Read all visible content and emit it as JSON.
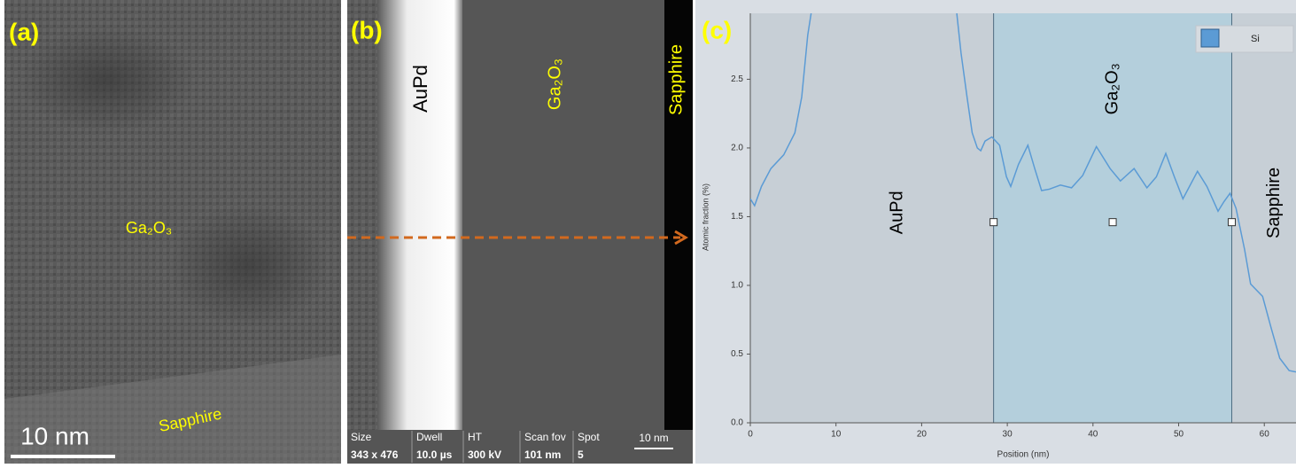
{
  "panel_a": {
    "label": "(a)",
    "layer": "Ga₂O₃",
    "substrate": "Sapphire",
    "scale_bar": "10 nm"
  },
  "panel_b": {
    "label": "(b)",
    "regions": [
      "AuPd",
      "Ga₂O₃",
      "Sapphire"
    ],
    "scale_bar": "10 nm",
    "info": [
      [
        "Size",
        "343 x 476"
      ],
      [
        "Dwell",
        "10.0 µs"
      ],
      [
        "HT",
        "300 kV"
      ],
      [
        "Scan fov",
        "101 nm"
      ],
      [
        "Spot",
        "5"
      ]
    ]
  },
  "chart_data": {
    "type": "line",
    "panel_label": "(c)",
    "xlabel": "Position (nm)",
    "ylabel": "Atomic fraction (%)",
    "xlim": [
      0,
      63.7
    ],
    "ylim": [
      0,
      2.98
    ],
    "xticks": [
      0,
      10,
      20,
      30,
      40,
      50,
      60
    ],
    "yticks": [
      {
        "value": 0,
        "label": "0.0"
      },
      0.5,
      {
        "value": 1,
        "label": "1.0"
      },
      1.5,
      {
        "value": 2,
        "label": "2.0"
      },
      2.5
    ],
    "legend": "top-right",
    "x": [
      0,
      0.5,
      1.3,
      2.4,
      3.9,
      5.2,
      6,
      6.7,
      7.1,
      15,
      24.1,
      24.6,
      25.3,
      25.9,
      26.5,
      26.9,
      27.4,
      28.2,
      29.1,
      29.9,
      30.4,
      31.3,
      32.4,
      33.2,
      34.0,
      34.9,
      36.2,
      37.5,
      38.8,
      40.4,
      42.0,
      43.2,
      44.8,
      46.3,
      47.4,
      48.5,
      49.5,
      50.5,
      52.2,
      53.3,
      54.6,
      55.3,
      56.0,
      56.7,
      57.7,
      58.4,
      59.8,
      60.8,
      61.8,
      62.9,
      63.7
    ],
    "series": [
      {
        "name": "Si",
        "color": "#5b9bd5",
        "values": [
          1.63,
          1.58,
          1.72,
          1.85,
          1.95,
          2.11,
          2.37,
          2.82,
          2.98,
          null,
          2.98,
          2.69,
          2.37,
          2.11,
          2.0,
          1.98,
          2.05,
          2.08,
          2.02,
          1.79,
          1.72,
          1.88,
          2.02,
          1.85,
          1.69,
          1.7,
          1.73,
          1.71,
          1.8,
          2.01,
          1.85,
          1.76,
          1.85,
          1.71,
          1.79,
          1.96,
          1.79,
          1.63,
          1.83,
          1.72,
          1.54,
          1.61,
          1.67,
          1.56,
          1.26,
          1.01,
          0.92,
          0.69,
          0.47,
          0.38,
          0.37
        ]
      }
    ],
    "region_bounds": [
      28.4,
      56.2
    ],
    "regions": [
      {
        "label": "AuPd",
        "x": 17.2,
        "y": 1.53
      },
      {
        "label": "Ga₂O₃",
        "x": 42.3,
        "y": 2.43
      },
      {
        "label": "Sapphire",
        "x": 61.2,
        "y": 1.6
      }
    ],
    "markers": {
      "x": [
        28.4,
        42.3,
        56.2
      ],
      "y": [
        1.46,
        1.46,
        1.46
      ]
    }
  }
}
